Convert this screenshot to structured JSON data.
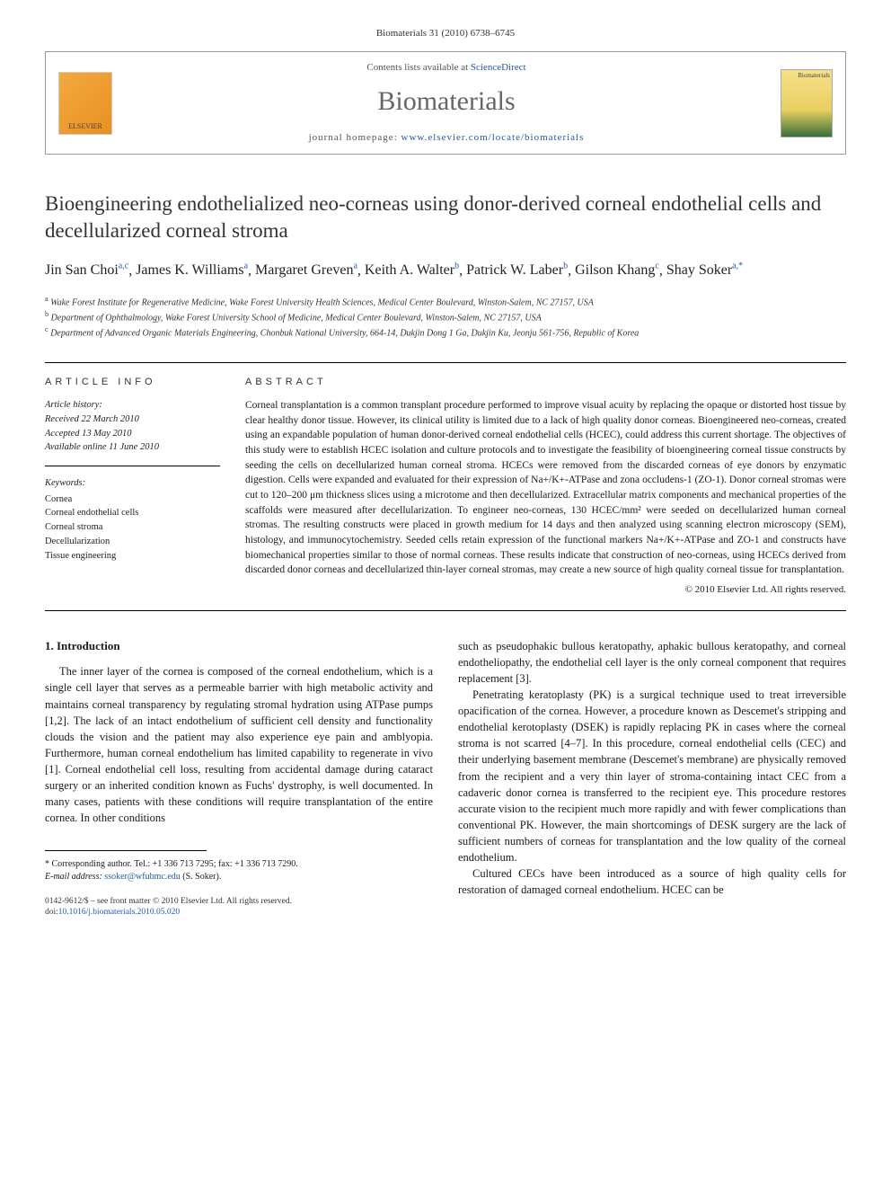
{
  "journal_ref": "Biomaterials 31 (2010) 6738–6745",
  "header": {
    "contents_prefix": "Contents lists available at ",
    "contents_link": "ScienceDirect",
    "journal_name": "Biomaterials",
    "homepage_prefix": "journal homepage: ",
    "homepage_link": "www.elsevier.com/locate/biomaterials",
    "elsevier": "ELSEVIER",
    "cover": "Biomaterials"
  },
  "title": "Bioengineering endothelialized neo-corneas using donor-derived corneal endothelial cells and decellularized corneal stroma",
  "authors": [
    {
      "name": "Jin San Choi",
      "aff": "a,c"
    },
    {
      "name": "James K. Williams",
      "aff": "a"
    },
    {
      "name": "Margaret Greven",
      "aff": "a"
    },
    {
      "name": "Keith A. Walter",
      "aff": "b"
    },
    {
      "name": "Patrick W. Laber",
      "aff": "b"
    },
    {
      "name": "Gilson Khang",
      "aff": "c"
    },
    {
      "name": "Shay Soker",
      "aff": "a,*"
    }
  ],
  "affiliations": {
    "a": "Wake Forest Institute for Regenerative Medicine, Wake Forest University Health Sciences, Medical Center Boulevard, Winston-Salem, NC 27157, USA",
    "b": "Department of Ophthalmology, Wake Forest University School of Medicine, Medical Center Boulevard, Winston-Salem, NC 27157, USA",
    "c": "Department of Advanced Organic Materials Engineering, Chonbuk National University, 664-14, Dukjin Dong 1 Ga, Dukjin Ku, Jeonju 561-756, Republic of Korea"
  },
  "article_info_heading": "ARTICLE INFO",
  "history_label": "Article history:",
  "history": {
    "received": "Received 22 March 2010",
    "accepted": "Accepted 13 May 2010",
    "online": "Available online 11 June 2010"
  },
  "keywords_label": "Keywords:",
  "keywords": [
    "Cornea",
    "Corneal endothelial cells",
    "Corneal stroma",
    "Decellularization",
    "Tissue engineering"
  ],
  "abstract_heading": "ABSTRACT",
  "abstract": "Corneal transplantation is a common transplant procedure performed to improve visual acuity by replacing the opaque or distorted host tissue by clear healthy donor tissue. However, its clinical utility is limited due to a lack of high quality donor corneas. Bioengineered neo-corneas, created using an expandable population of human donor-derived corneal endothelial cells (HCEC), could address this current shortage. The objectives of this study were to establish HCEC isolation and culture protocols and to investigate the feasibility of bioengineering corneal tissue constructs by seeding the cells on decellularized human corneal stroma. HCECs were removed from the discarded corneas of eye donors by enzymatic digestion. Cells were expanded and evaluated for their expression of Na+/K+-ATPase and zona occludens-1 (ZO-1). Donor corneal stromas were cut to 120–200 μm thickness slices using a microtome and then decellularized. Extracellular matrix components and mechanical properties of the scaffolds were measured after decellularization. To engineer neo-corneas, 130 HCEC/mm² were seeded on decellularized human corneal stromas. The resulting constructs were placed in growth medium for 14 days and then analyzed using scanning electron microscopy (SEM), histology, and immunocytochemistry. Seeded cells retain expression of the functional markers Na+/K+-ATPase and ZO-1 and constructs have biomechanical properties similar to those of normal corneas. These results indicate that construction of neo-corneas, using HCECs derived from discarded donor corneas and decellularized thin-layer corneal stromas, may create a new source of high quality corneal tissue for transplantation.",
  "copyright": "© 2010 Elsevier Ltd. All rights reserved.",
  "intro_heading": "1. Introduction",
  "col1_p1": "The inner layer of the cornea is composed of the corneal endothelium, which is a single cell layer that serves as a permeable barrier with high metabolic activity and maintains corneal transparency by regulating stromal hydration using ATPase pumps [1,2]. The lack of an intact endothelium of sufficient cell density and functionality clouds the vision and the patient may also experience eye pain and amblyopia. Furthermore, human corneal endothelium has limited capability to regenerate in vivo [1]. Corneal endothelial cell loss, resulting from accidental damage during cataract surgery or an inherited condition known as Fuchs' dystrophy, is well documented. In many cases, patients with these conditions will require transplantation of the entire cornea. In other conditions",
  "col2_p1": "such as pseudophakic bullous keratopathy, aphakic bullous keratopathy, and corneal endotheliopathy, the endothelial cell layer is the only corneal component that requires replacement [3].",
  "col2_p2": "Penetrating keratoplasty (PK) is a surgical technique used to treat irreversible opacification of the cornea. However, a procedure known as Descemet's stripping and endothelial kerotoplasty (DSEK) is rapidly replacing PK in cases where the corneal stroma is not scarred [4–7]. In this procedure, corneal endothelial cells (CEC) and their underlying basement membrane (Descemet's membrane) are physically removed from the recipient and a very thin layer of stroma-containing intact CEC from a cadaveric donor cornea is transferred to the recipient eye. This procedure restores accurate vision to the recipient much more rapidly and with fewer complications than conventional PK. However, the main shortcomings of DESK surgery are the lack of sufficient numbers of corneas for transplantation and the low quality of the corneal endothelium.",
  "col2_p3": "Cultured CECs have been introduced as a source of high quality cells for restoration of damaged corneal endothelium. HCEC can be",
  "corresponding": {
    "label": "* Corresponding author. Tel.: +1 336 713 7295; fax: +1 336 713 7290.",
    "email_label": "E-mail address: ",
    "email": "ssoker@wfubmc.edu",
    "email_suffix": " (S. Soker)."
  },
  "bottom": {
    "issn": "0142-9612/$ – see front matter © 2010 Elsevier Ltd. All rights reserved.",
    "doi_label": "doi:",
    "doi": "10.1016/j.biomaterials.2010.05.020"
  },
  "colors": {
    "link": "#2359a8",
    "text": "#1a1a1a",
    "heading_gray": "#666666"
  }
}
